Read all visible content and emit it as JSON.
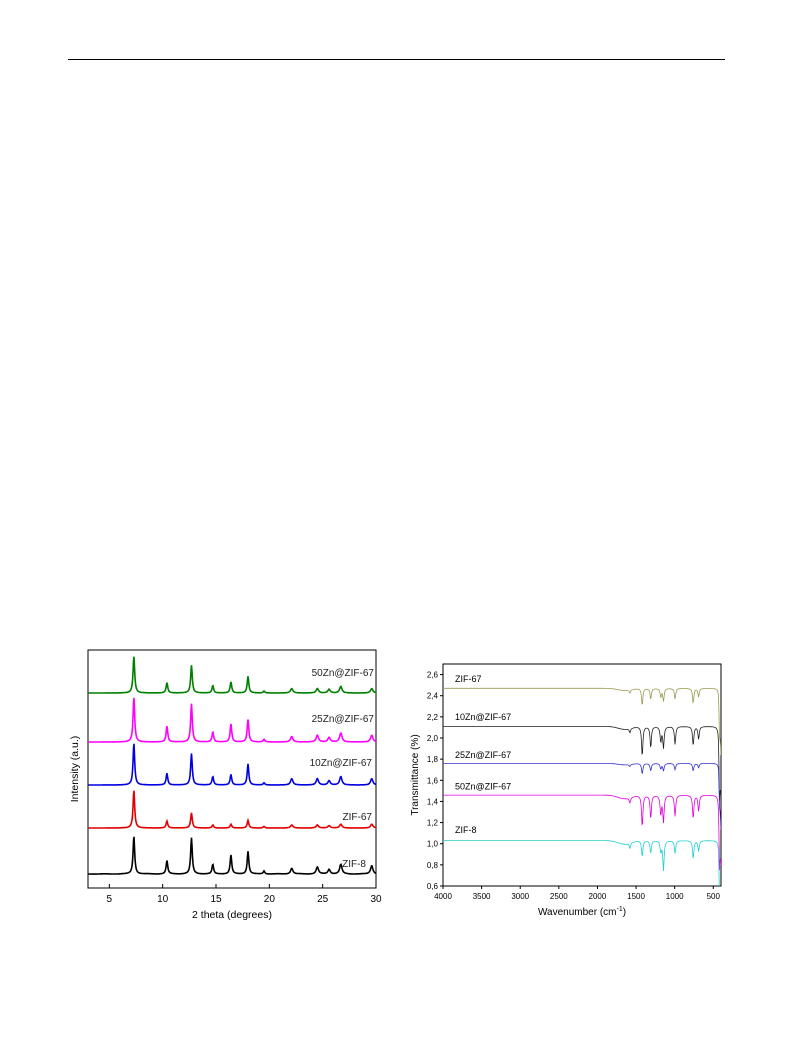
{
  "chart_data": [
    {
      "type": "line",
      "xlabel": "2 theta (degrees)",
      "ylabel": "Intensity (a.u.)",
      "xlim": [
        3,
        30
      ],
      "xticks": [
        5,
        10,
        15,
        20,
        25,
        30
      ],
      "yticks_shown": false,
      "legend": "inline labels, right side",
      "peaks_2theta": [
        7.3,
        10.4,
        12.7,
        14.7,
        16.4,
        18.0,
        19.5,
        22.1,
        24.5,
        25.6,
        26.7,
        29.6
      ],
      "series": [
        {
          "name": "ZIF-8",
          "color": "#000000",
          "heights": [
            1.0,
            0.35,
            0.95,
            0.25,
            0.5,
            0.6,
            0.08,
            0.15,
            0.18,
            0.12,
            0.25,
            0.22
          ]
        },
        {
          "name": "ZIF-67",
          "color": "#e00000",
          "heights": [
            1.0,
            0.18,
            0.4,
            0.08,
            0.1,
            0.2,
            0.04,
            0.08,
            0.08,
            0.06,
            0.1,
            0.1
          ]
        },
        {
          "name": "10Zn@ZIF-67",
          "color": "#0000e0",
          "heights": [
            1.0,
            0.28,
            0.75,
            0.2,
            0.25,
            0.5,
            0.05,
            0.15,
            0.15,
            0.1,
            0.2,
            0.15
          ]
        },
        {
          "name": "25Zn@ZIF-67",
          "color": "#ff00ff",
          "heights": [
            1.0,
            0.35,
            0.85,
            0.22,
            0.4,
            0.5,
            0.06,
            0.12,
            0.15,
            0.1,
            0.2,
            0.15
          ]
        },
        {
          "name": "50Zn@ZIF-67",
          "color": "#008000",
          "heights": [
            1.0,
            0.28,
            0.75,
            0.2,
            0.3,
            0.45,
            0.05,
            0.12,
            0.12,
            0.1,
            0.18,
            0.12
          ]
        }
      ]
    },
    {
      "type": "line",
      "xlabel": "Wavenumber (cm",
      "xlabel_sup": "-1",
      "xlabel_end": ")",
      "ylabel": "Transmittance (%)",
      "xlim": [
        4000,
        400
      ],
      "ylim": [
        0.6,
        2.7
      ],
      "xticks": [
        4000,
        3500,
        3000,
        2500,
        2000,
        1500,
        1000,
        500
      ],
      "yticks": [
        "0,6",
        "0,8",
        "1,0",
        "1,2",
        "1,4",
        "1,6",
        "1,8",
        "2,0",
        "2,2",
        "2,4",
        "2,6"
      ],
      "legend": "inline labels, left side",
      "bands_cm1": [
        1580,
        1420,
        1310,
        1180,
        1145,
        995,
        760,
        690,
        420
      ],
      "series": [
        {
          "name": "ZIF-67",
          "color": "#9a9a50",
          "baseline": 2.47,
          "depths": [
            0.03,
            0.16,
            0.1,
            0.08,
            0.12,
            0.1,
            0.14,
            0.08,
            0.25
          ]
        },
        {
          "name": "10Zn@ZIF-67",
          "color": "#202020",
          "baseline": 2.11,
          "depths": [
            0.04,
            0.28,
            0.2,
            0.14,
            0.2,
            0.17,
            0.18,
            0.12,
            0.5
          ]
        },
        {
          "name": "25Zn@ZIF-67",
          "color": "#3333cc",
          "baseline": 1.76,
          "depths": [
            0.02,
            0.1,
            0.07,
            0.05,
            0.07,
            0.06,
            0.07,
            0.04,
            0.2
          ]
        },
        {
          "name": "50Zn@ZIF-67",
          "color": "#e000e0",
          "baseline": 1.46,
          "depths": [
            0.05,
            0.3,
            0.22,
            0.18,
            0.25,
            0.2,
            0.22,
            0.15,
            0.5
          ]
        },
        {
          "name": "ZIF-8",
          "color": "#20d0d0",
          "baseline": 1.03,
          "depths": [
            0.05,
            0.15,
            0.12,
            0.1,
            0.28,
            0.12,
            0.17,
            0.1,
            0.35
          ]
        }
      ]
    }
  ]
}
